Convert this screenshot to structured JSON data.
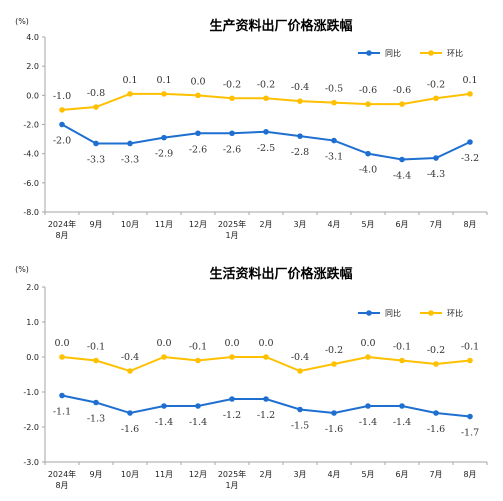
{
  "chart_data": [
    {
      "type": "line",
      "title": "生产资料出厂价格涨跌幅",
      "unit_label": "(%)",
      "categories": [
        "2024年\n8月",
        "9月",
        "10月",
        "11月",
        "12月",
        "2025年\n1月",
        "2月",
        "3月",
        "4月",
        "5月",
        "6月",
        "7月",
        "8月"
      ],
      "ylim": [
        -8.0,
        4.0
      ],
      "yticks": [
        "4.0",
        "2.0",
        "0.0",
        "-2.0",
        "-4.0",
        "-6.0",
        "-8.0"
      ],
      "legend_position": "top-right",
      "series": [
        {
          "name": "同比",
          "color": "#1f6fd1",
          "label_position": "below",
          "values": [
            -2.0,
            -3.3,
            -3.3,
            -2.9,
            -2.6,
            -2.6,
            -2.5,
            -2.8,
            -3.1,
            -4.0,
            -4.4,
            -4.3,
            -3.2
          ]
        },
        {
          "name": "环比",
          "color": "#ffc000",
          "label_position": "above",
          "values": [
            -1.0,
            -0.8,
            0.1,
            0.1,
            0.0,
            -0.2,
            -0.2,
            -0.4,
            -0.5,
            -0.6,
            -0.6,
            -0.2,
            0.1
          ]
        }
      ]
    },
    {
      "type": "line",
      "title": "生活资料出厂价格涨跌幅",
      "unit_label": "(%)",
      "categories": [
        "2024年\n8月",
        "9月",
        "10月",
        "11月",
        "12月",
        "2025年\n1月",
        "2月",
        "3月",
        "4月",
        "5月",
        "6月",
        "7月",
        "8月"
      ],
      "ylim": [
        -3.0,
        2.0
      ],
      "yticks": [
        "2.0",
        "1.0",
        "0.0",
        "-1.0",
        "-2.0",
        "-3.0"
      ],
      "legend_position": "top-right",
      "series": [
        {
          "name": "同比",
          "color": "#1f6fd1",
          "label_position": "below",
          "values": [
            -1.1,
            -1.3,
            -1.6,
            -1.4,
            -1.4,
            -1.2,
            -1.2,
            -1.5,
            -1.6,
            -1.4,
            -1.4,
            -1.6,
            -1.7
          ]
        },
        {
          "name": "环比",
          "color": "#ffc000",
          "label_position": "above",
          "values": [
            0.0,
            -0.1,
            -0.4,
            0.0,
            -0.1,
            0.0,
            0.0,
            -0.4,
            -0.2,
            0.0,
            -0.1,
            -0.2,
            -0.1
          ]
        }
      ]
    }
  ]
}
